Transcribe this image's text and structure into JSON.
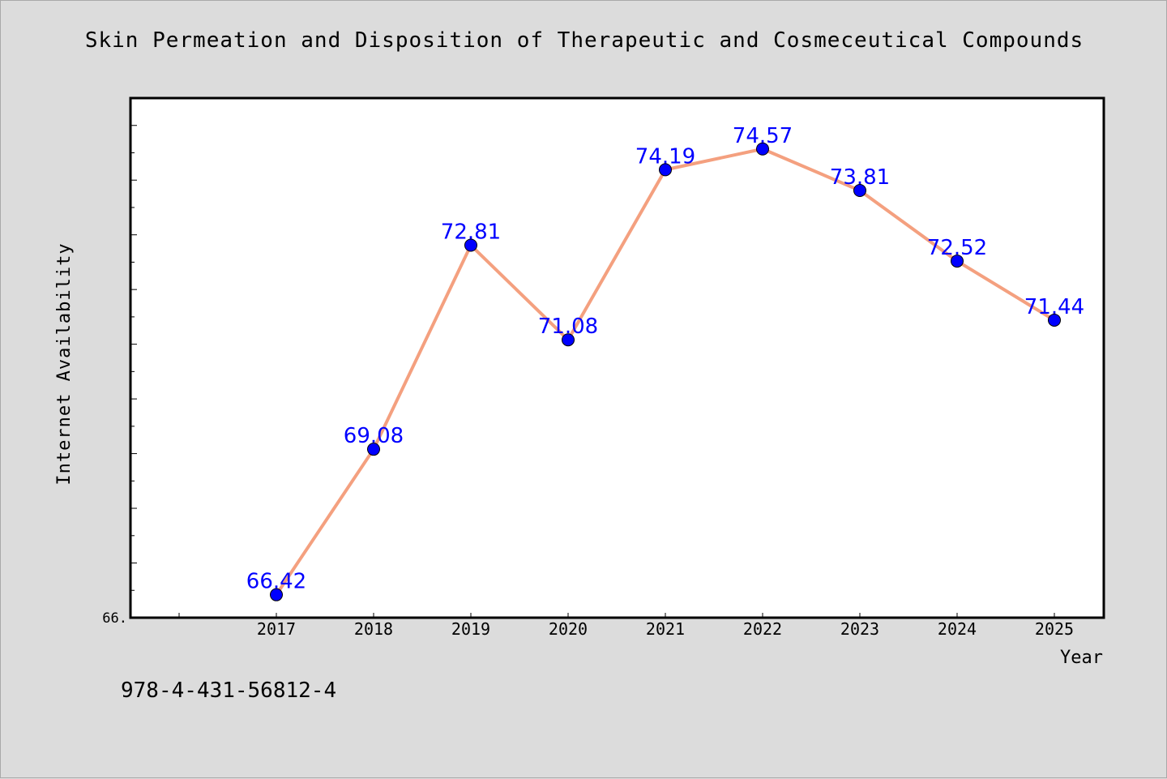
{
  "chart_data": {
    "type": "line",
    "title": "Skin Permeation and Disposition of Therapeutic and Cosmeceutical Compounds",
    "xlabel": "Year",
    "ylabel": "Internet Availability",
    "categories": [
      "2017",
      "2018",
      "2019",
      "2020",
      "2021",
      "2022",
      "2023",
      "2024",
      "2025"
    ],
    "series": [
      {
        "values": [
          66.42,
          69.08,
          72.81,
          71.08,
          74.19,
          74.57,
          73.81,
          72.52,
          71.44
        ],
        "labels": [
          "66.42",
          "69.08",
          "72.81",
          "71.08",
          "74.19",
          "74.57",
          "73.81",
          "72.52",
          "71.44"
        ]
      }
    ],
    "ylim": [
      66.0,
      75.5
    ],
    "y_tick_label": "66.",
    "grid": false,
    "line_color": "#f4a07f",
    "marker_color": "#0000ff",
    "label_color": "#0000ff"
  },
  "footer": {
    "isbn": "978-4-431-56812-4"
  }
}
